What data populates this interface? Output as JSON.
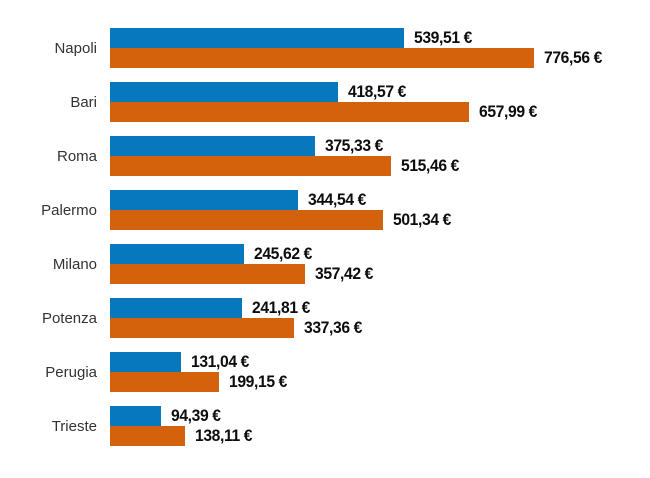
{
  "chart_data": {
    "type": "bar",
    "orientation": "horizontal",
    "title": "",
    "xlabel": "",
    "ylabel": "",
    "unit": "€",
    "grid": false,
    "legend": "none",
    "xlim": [
      0,
      990
    ],
    "categories": [
      "Napoli",
      "Bari",
      "Roma",
      "Palermo",
      "Milano",
      "Potenza",
      "Perugia",
      "Trieste"
    ],
    "series": [
      {
        "name": "blue-series",
        "color": "#0778be",
        "values": [
          539.51,
          418.57,
          375.33,
          344.54,
          245.62,
          241.81,
          131.04,
          94.39
        ],
        "labels": [
          "539,51 €",
          "418,57 €",
          "375,33 €",
          "344,54 €",
          "245,62 €",
          "241,81 €",
          "131,04 €",
          "94,39 €"
        ]
      },
      {
        "name": "orange-series",
        "color": "#d4610b",
        "values": [
          776.56,
          657.99,
          515.46,
          501.34,
          357.42,
          337.36,
          199.15,
          138.11
        ],
        "labels": [
          "776,56 €",
          "657,99 €",
          "515,46 €",
          "501,34 €",
          "357,42 €",
          "337,36 €",
          "199,15 €",
          "138,11 €"
        ]
      }
    ]
  },
  "colors": {
    "background": "#ffffff",
    "category_label": "#333333",
    "value_label": "#0d0d0d"
  }
}
